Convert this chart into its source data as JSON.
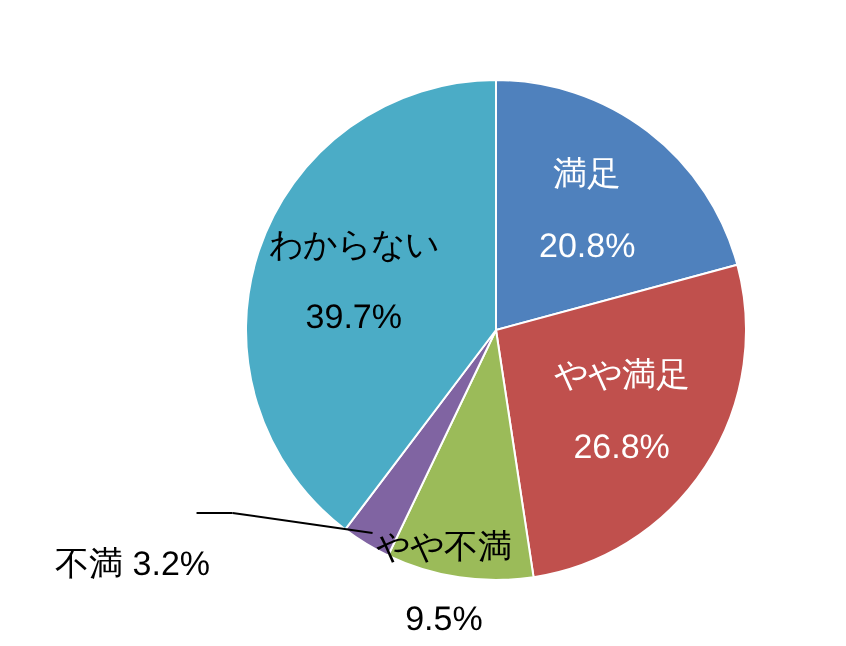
{
  "chart_data": {
    "type": "pie",
    "categories": [
      "満足",
      "やや満足",
      "やや不満",
      "不満",
      "わからない"
    ],
    "values": [
      20.8,
      26.8,
      9.5,
      3.2,
      39.7
    ],
    "value_labels": [
      "20.8%",
      "26.8%",
      "9.5%",
      "3.2%",
      "39.7%"
    ],
    "colors": [
      "#4f81bd",
      "#c0504d",
      "#9bbb59",
      "#8064a2",
      "#4bacc6"
    ]
  }
}
